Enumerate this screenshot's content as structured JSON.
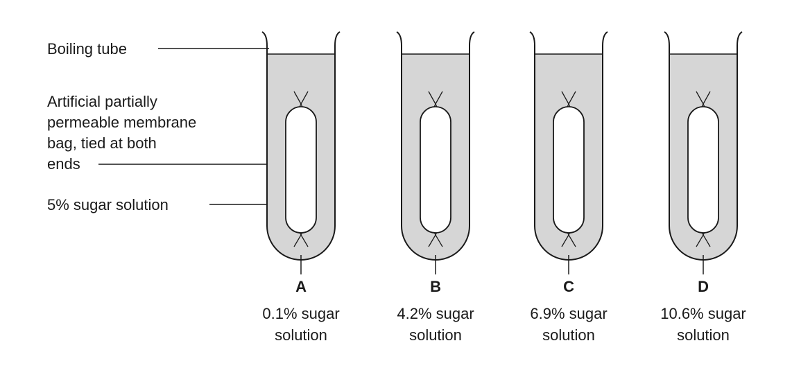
{
  "labels": {
    "boiling_tube": "Boiling tube",
    "membrane": [
      "Artificial partially",
      "permeable membrane",
      "bag, tied at both",
      "ends"
    ],
    "inner_solution": "5% sugar solution"
  },
  "tubes": [
    {
      "letter": "A",
      "concentration": "0.1% sugar",
      "unit": "solution"
    },
    {
      "letter": "B",
      "concentration": "4.2% sugar",
      "unit": "solution"
    },
    {
      "letter": "C",
      "concentration": "6.9% sugar",
      "unit": "solution"
    },
    {
      "letter": "D",
      "concentration": "10.6% sugar",
      "unit": "solution"
    }
  ],
  "colors": {
    "liquid": "#d6d6d6",
    "outline": "#1a1a1a",
    "background": "#ffffff"
  }
}
